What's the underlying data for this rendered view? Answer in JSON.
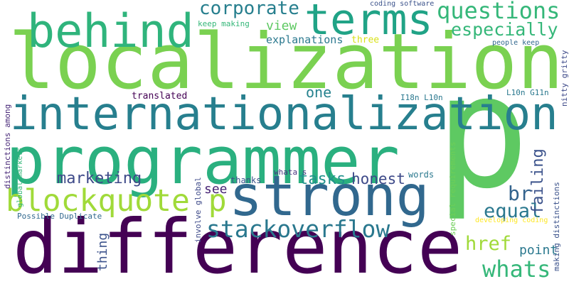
{
  "words": [
    "localization",
    "difference",
    "programmer",
    "p",
    "internationalization",
    "strong",
    "behind",
    "terms",
    "blockquote p",
    "stackoverflow",
    "corporate",
    "questions",
    "especially",
    "equal",
    "br",
    "failing",
    "whats",
    "href",
    "point",
    "marketing",
    "tasks",
    "honest",
    "see",
    "thanks",
    "words",
    "one",
    "translated",
    "view",
    "explanations",
    "three",
    "keep making",
    "coding software",
    "people keep",
    "nitty gritty",
    "I18n L10n",
    "L10n G11n",
    "distinctions among",
    "global markets",
    "Possible Duplicate",
    "thing",
    "involve global",
    "whata s",
    "special requirements",
    "developing coding",
    "making distinctions"
  ]
}
